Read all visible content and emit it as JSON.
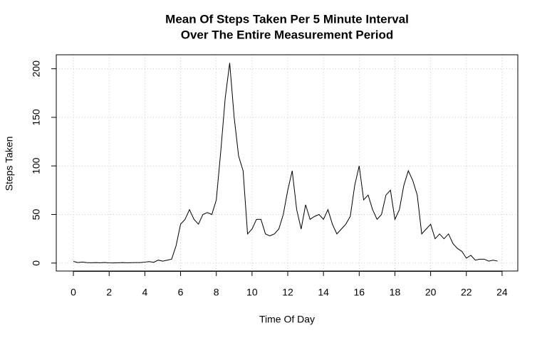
{
  "chart_data": {
    "type": "line",
    "title": "Mean Of Steps Taken Per 5 Minute Interval",
    "subtitle": "Over The Entire Measurement Period",
    "x_label": "Time Of Day",
    "y_label": "Steps Taken",
    "x": [
      0,
      0.25,
      0.5,
      0.75,
      1,
      1.25,
      1.5,
      1.75,
      2,
      2.25,
      2.5,
      2.75,
      3,
      3.25,
      3.5,
      3.75,
      4,
      4.25,
      4.5,
      4.75,
      5,
      5.25,
      5.5,
      5.75,
      6,
      6.25,
      6.5,
      6.75,
      7,
      7.25,
      7.5,
      7.75,
      8,
      8.25,
      8.5,
      8.75,
      9,
      9.25,
      9.5,
      9.75,
      10,
      10.25,
      10.5,
      10.75,
      11,
      11.25,
      11.5,
      11.75,
      12,
      12.25,
      12.5,
      12.75,
      13,
      13.25,
      13.5,
      13.75,
      14,
      14.25,
      14.5,
      14.75,
      15,
      15.25,
      15.5,
      15.75,
      16,
      16.25,
      16.5,
      16.75,
      17,
      17.25,
      17.5,
      17.75,
      18,
      18.25,
      18.5,
      18.75,
      19,
      19.25,
      19.5,
      19.75,
      20,
      20.25,
      20.5,
      20.75,
      21,
      21.25,
      21.5,
      21.75,
      22,
      22.25,
      22.5,
      22.75,
      23,
      23.25,
      23.5,
      23.75
    ],
    "series": [
      {
        "color": "#000000",
        "values": [
          1.7,
          0.5,
          1,
          0.5,
          0.3,
          0.5,
          0.3,
          0.6,
          0.2,
          0.1,
          0.3,
          0.5,
          0.3,
          0.4,
          0.5,
          0.5,
          1,
          1.5,
          0.8,
          3,
          2,
          3,
          4,
          18,
          40,
          45,
          55,
          45,
          40,
          50,
          52,
          50,
          65,
          115,
          170,
          206,
          150,
          110,
          95,
          30,
          35,
          45,
          45,
          30,
          28,
          30,
          35,
          50,
          75,
          95,
          55,
          35,
          60,
          45,
          48,
          50,
          45,
          55,
          40,
          30,
          35,
          40,
          48,
          80,
          100,
          65,
          70,
          55,
          45,
          50,
          70,
          75,
          45,
          55,
          80,
          95,
          85,
          70,
          30,
          35,
          40,
          25,
          30,
          25,
          30,
          20,
          15,
          12,
          5,
          8,
          3,
          4,
          4,
          2,
          3,
          2
        ]
      }
    ],
    "xlim": [
      -0.96,
      24.88
    ],
    "ylim": [
      -8.2,
      214.4
    ],
    "xticks": [
      0,
      2,
      4,
      6,
      8,
      10,
      12,
      14,
      16,
      18,
      20,
      22,
      24
    ],
    "yticks": [
      0,
      50,
      100,
      150,
      200
    ],
    "grid": true
  }
}
